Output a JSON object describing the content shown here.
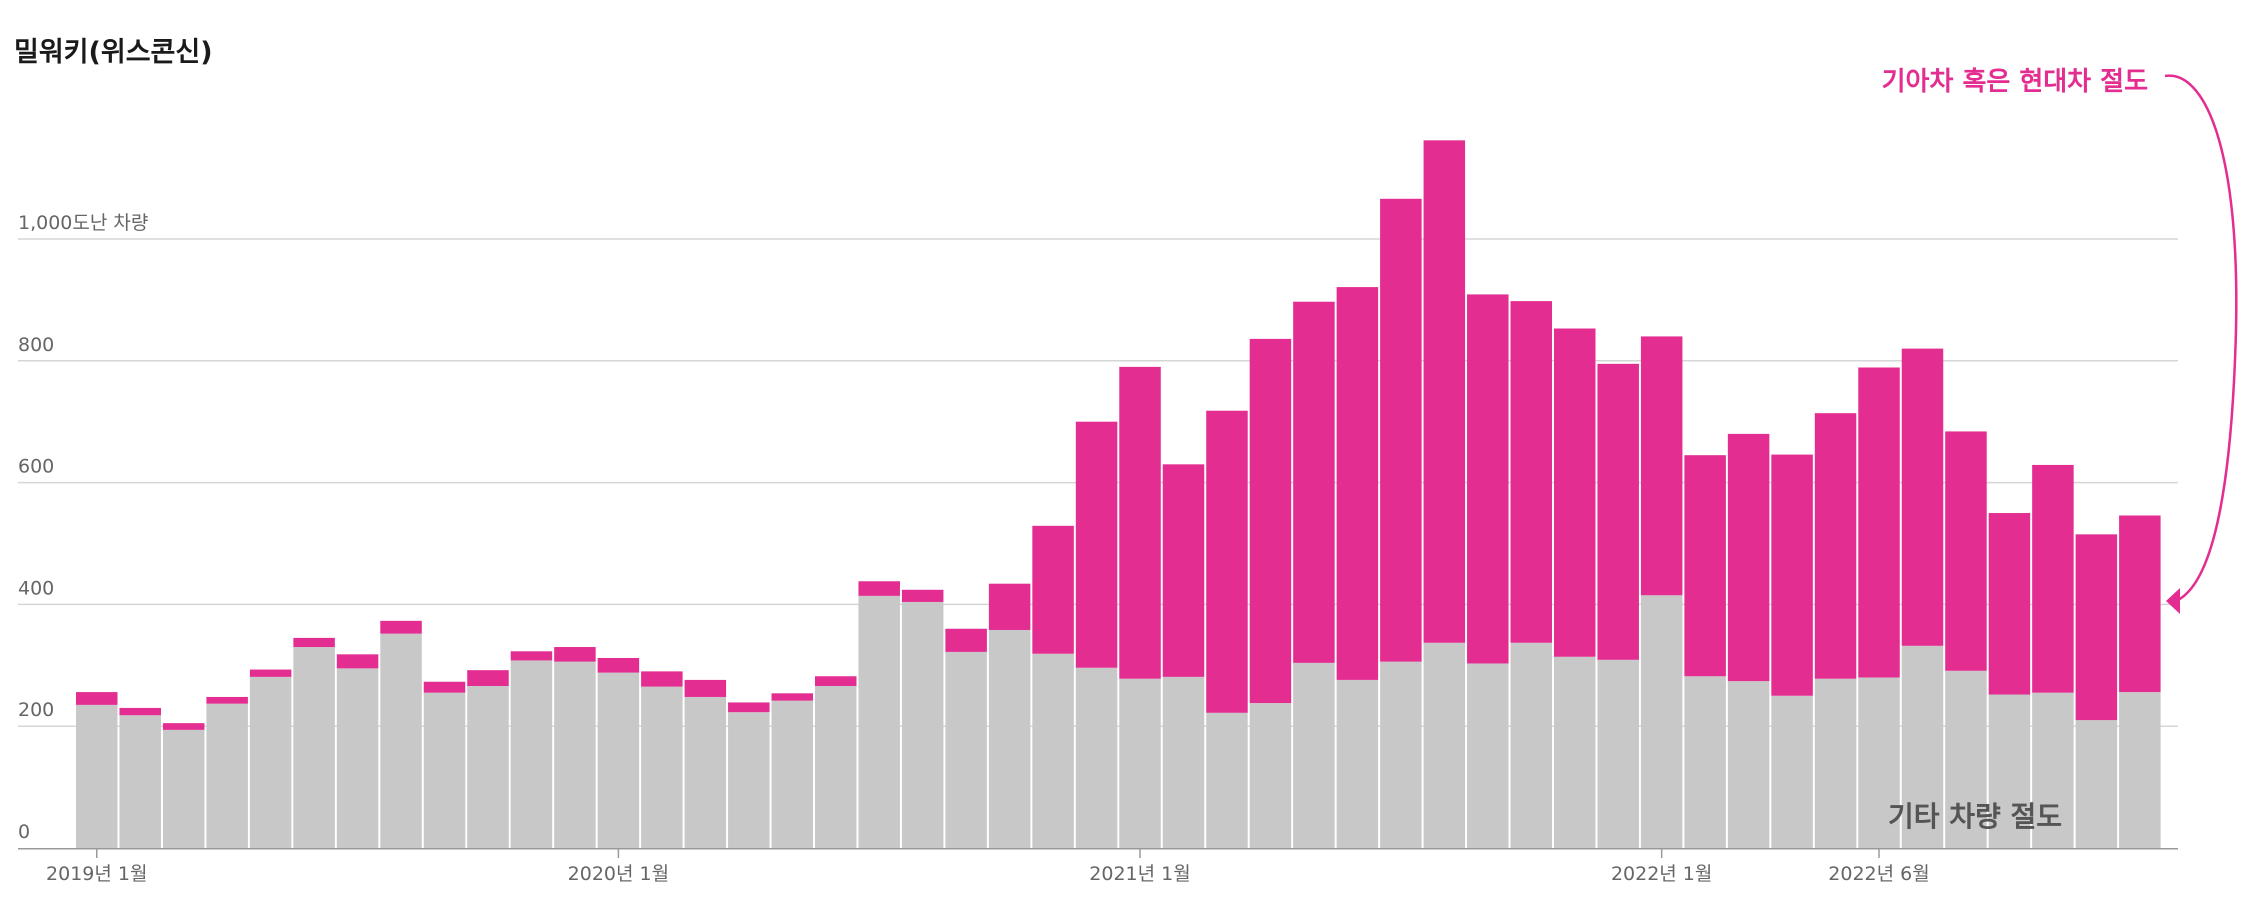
{
  "chart_data": {
    "type": "bar",
    "stacked": true,
    "title": "밀워키(위스콘신)",
    "y_unit_label": "1,000도난 차량",
    "ylim": [
      0,
      1220
    ],
    "y_ticks": [
      {
        "value": 0,
        "label": "0"
      },
      {
        "value": 200,
        "label": "200"
      },
      {
        "value": 400,
        "label": "400"
      },
      {
        "value": 600,
        "label": "600"
      },
      {
        "value": 800,
        "label": "800"
      }
    ],
    "grid": true,
    "x_ticks": [
      {
        "index": 0,
        "label": "2019년 1월"
      },
      {
        "index": 12,
        "label": "2020년 1월"
      },
      {
        "index": 24,
        "label": "2021년 1월"
      },
      {
        "index": 36,
        "label": "2022년 1월"
      },
      {
        "index": 41,
        "label": "2022년 6월"
      }
    ],
    "series": [
      {
        "name": "기타 차량 절도",
        "color": "#c8c8c8",
        "values": [
          235,
          218,
          194,
          237,
          281,
          330,
          295,
          352,
          255,
          266,
          308,
          306,
          288,
          265,
          248,
          223,
          242,
          266,
          414,
          404,
          322,
          358,
          319,
          296,
          278,
          281,
          222,
          238,
          304,
          276,
          306,
          337,
          303,
          337,
          314,
          309,
          415,
          282,
          274,
          250,
          278,
          280,
          332,
          291,
          252,
          255,
          210,
          256
        ]
      },
      {
        "name": "기아차 혹은 현대차 절도",
        "color": "#e32d91",
        "values": [
          21,
          12,
          11,
          11,
          12,
          15,
          23,
          21,
          18,
          26,
          15,
          24,
          24,
          25,
          28,
          16,
          12,
          16,
          24,
          20,
          38,
          76,
          210,
          404,
          512,
          349,
          496,
          598,
          593,
          645,
          760,
          825,
          606,
          561,
          539,
          486,
          425,
          363,
          406,
          396,
          436,
          509,
          488,
          393,
          298,
          374,
          305,
          290
        ]
      }
    ],
    "annotations": [
      {
        "text": "기아차 혹은 현대차 절도",
        "color": "#e32d91"
      },
      {
        "text": "기타 차량 절도",
        "color": "#555555"
      }
    ]
  }
}
